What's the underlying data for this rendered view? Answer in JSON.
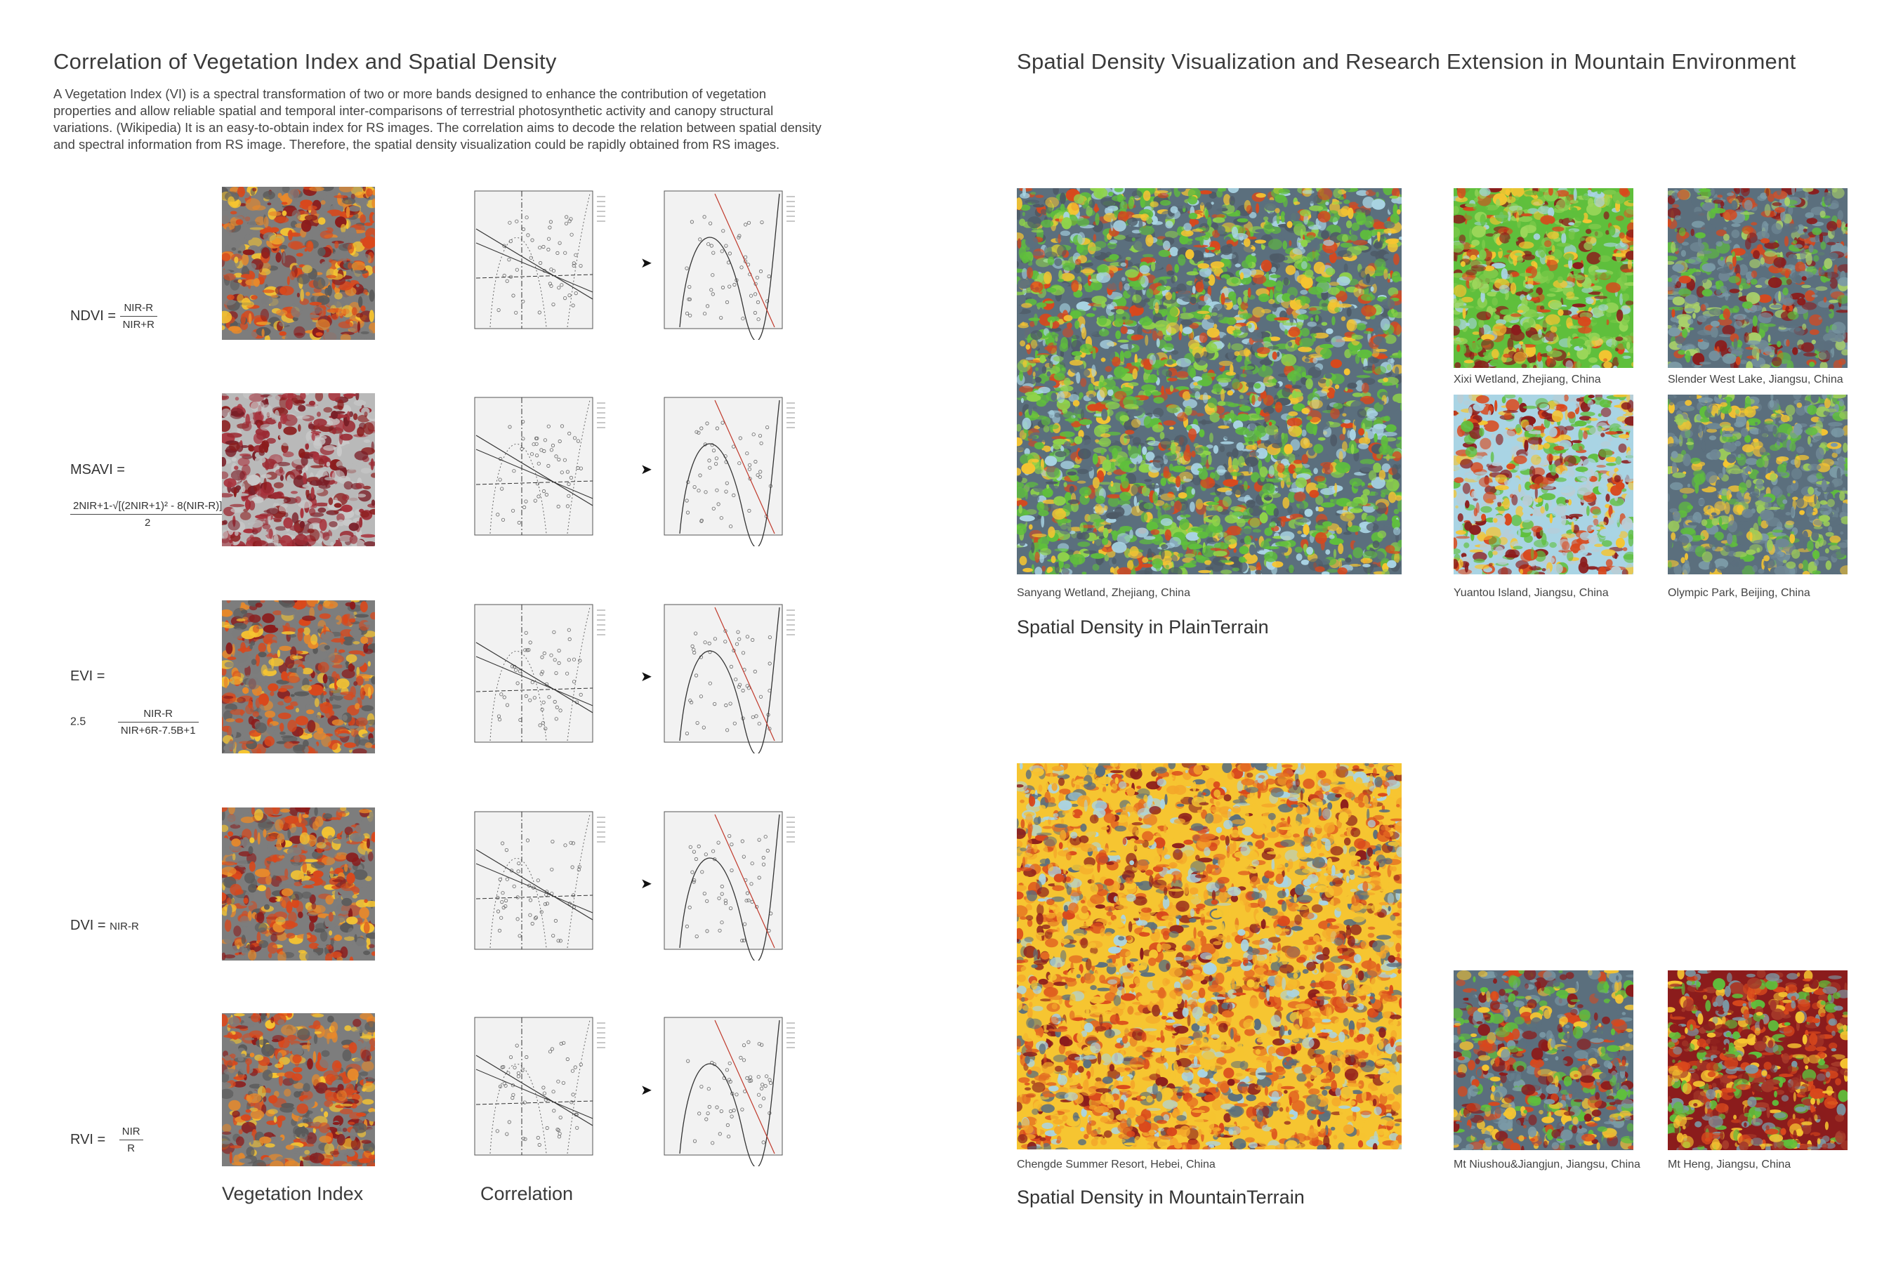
{
  "left": {
    "title": "Correlation of Vegetation Index and Spatial Density",
    "description_lines": [
      "A Vegetation Index (VI) is a spectral transformation of two or more bands designed to enhance the contribution of vegetation",
      "properties and allow reliable spatial and temporal inter-comparisons of terrestrial photosynthetic activity and canopy structural",
      "variations. (Wikipedia) It is an easy-to-obtain index for RS images. The correlation aims to decode the relation between spatial density",
      "and spectral information from RS image. Therefore, the spatial density visualization could be rapidly obtained from RS images."
    ],
    "indices": [
      {
        "name": "NDVI =",
        "numerator": "NIR-R",
        "denominator": "NIR+R"
      },
      {
        "name": "MSAVI =",
        "numerator": "2NIR+1-√[(2NIR+1)² - 8(NIR-R)]",
        "denominator": "2"
      },
      {
        "name": "EVI =",
        "prefix": "2.5",
        "numerator": "NIR-R",
        "denominator": "NIR+6R-7.5B+1"
      },
      {
        "name": "DVI =",
        "expression": "NIR-R"
      },
      {
        "name": "RVI =",
        "numerator": "NIR",
        "denominator": "R"
      }
    ],
    "arrow_glyph": "➤",
    "column_labels": {
      "vegetation_index": "Vegetation Index",
      "correlation": "Correlation"
    }
  },
  "right": {
    "title": "Spatial Density Visualization and Research Extension in Mountain Environment",
    "plain": {
      "heading": "Spatial Density in PlainTerrain",
      "main_caption": "Sanyang Wetland, Zhejiang, China",
      "thumb_captions": [
        "Xixi Wetland, Zhejiang, China",
        "Slender West Lake, Jiangsu, China",
        "Yuantou Island, Jiangsu, China",
        "Olympic Park, Beijing, China"
      ]
    },
    "mountain": {
      "heading": "Spatial Density in MountainTerrain",
      "main_caption": "Chengde Summer Resort, Hebei, China",
      "thumb_captions": [
        "Mt Niushou&Jiangjun, Jiangsu, China",
        "Mt Heng, Jiangsu, China"
      ]
    }
  },
  "colors": {
    "heat_dark": "#8b1c1c",
    "heat_mid": "#d9481c",
    "heat_light": "#f6c531",
    "grey": "#7d7d7d",
    "green": "#5fbf3c",
    "water": "#a9d4e4",
    "slate": "#5b6f7d"
  }
}
